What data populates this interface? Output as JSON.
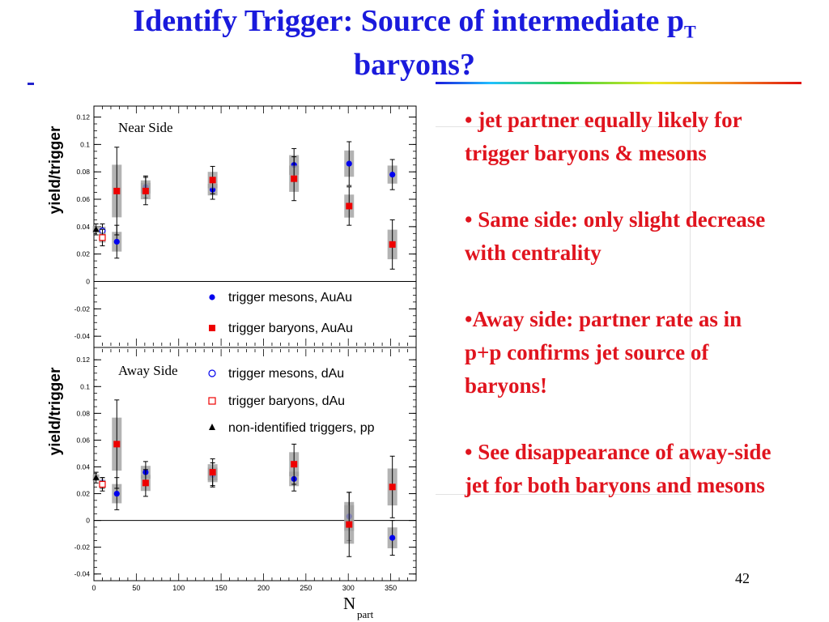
{
  "slide": {
    "title": "Identify Trigger: Source of intermediate p",
    "title_subscript": "T",
    "title_line2": "baryons?",
    "page_number": "42",
    "bullets": [
      "• jet partner equally likely for trigger baryons & mesons",
      "• Same side: only slight decrease with centrality",
      "•Away side: partner rate as in p+p confirms jet source of baryons!",
      "• See disappearance of away-side jet for both baryons and mesons"
    ],
    "colors": {
      "title": "#1a1adc",
      "bullets": "#e0141e"
    }
  },
  "chart_data": [
    {
      "type": "scatter",
      "panel_label": "Near Side",
      "ylabel": "yield/trigger",
      "xlabel": "",
      "xlim": [
        0,
        380
      ],
      "ylim": [
        -0.047,
        0.128
      ],
      "y_ticks": [
        "-0.04",
        "-0.02",
        "0",
        "0.02",
        "0.04",
        "0.06",
        "0.08",
        "0.1",
        "0.12"
      ],
      "y_tick_values": [
        -0.04,
        -0.02,
        0,
        0.02,
        0.04,
        0.06,
        0.08,
        0.1,
        0.12
      ],
      "series": [
        {
          "name": "trigger mesons, AuAu",
          "marker": "circle",
          "color": "#0000ee",
          "points": [
            [
              27,
              0.029,
              0.012
            ],
            [
              61,
              0.069,
              0.008
            ],
            [
              140,
              0.067,
              0.007
            ],
            [
              236,
              0.085,
              0.012
            ],
            [
              301,
              0.086,
              0.016
            ],
            [
              352,
              0.078,
              0.011
            ]
          ]
        },
        {
          "name": "trigger baryons, AuAu",
          "marker": "square",
          "color": "#ee0000",
          "points": [
            [
              27,
              0.066,
              0.032
            ],
            [
              61,
              0.066,
              0.01
            ],
            [
              140,
              0.074,
              0.01
            ],
            [
              236,
              0.075,
              0.016
            ],
            [
              301,
              0.055,
              0.014
            ],
            [
              352,
              0.027,
              0.018
            ]
          ]
        },
        {
          "name": "trigger mesons, dAu",
          "marker": "open-circle",
          "color": "#0000ee",
          "points": [
            [
              10,
              0.037,
              0.005
            ]
          ]
        },
        {
          "name": "trigger baryons, dAu",
          "marker": "open-square",
          "color": "#ee0000",
          "points": [
            [
              10,
              0.032,
              0.006
            ]
          ]
        },
        {
          "name": "non-identified triggers, pp",
          "marker": "triangle",
          "color": "#000000",
          "points": [
            [
              2.5,
              0.038,
              0.004
            ]
          ]
        }
      ]
    },
    {
      "type": "scatter",
      "panel_label": "Away Side",
      "ylabel": "yield/trigger",
      "xlabel": "N",
      "xlabel_sub": "part",
      "xlim": [
        0,
        380
      ],
      "ylim": [
        -0.045,
        0.128
      ],
      "x_ticks": [
        "0",
        "50",
        "100",
        "150",
        "200",
        "250",
        "300",
        "350"
      ],
      "x_tick_values": [
        0,
        50,
        100,
        150,
        200,
        250,
        300,
        350
      ],
      "y_ticks": [
        "-0.04",
        "-0.02",
        "0",
        "0.02",
        "0.04",
        "0.06",
        "0.08",
        "0.1",
        "0.12"
      ],
      "y_tick_values": [
        -0.04,
        -0.02,
        0,
        0.02,
        0.04,
        0.06,
        0.08,
        0.1,
        0.12
      ],
      "series": [
        {
          "name": "trigger mesons, AuAu",
          "marker": "circle",
          "color": "#0000ee",
          "points": [
            [
              27,
              0.02,
              0.012
            ],
            [
              61,
              0.036,
              0.008
            ],
            [
              140,
              0.034,
              0.009
            ],
            [
              236,
              0.031,
              0.009
            ],
            [
              301,
              0.003,
              0.018
            ],
            [
              352,
              -0.013,
              0.013
            ]
          ]
        },
        {
          "name": "trigger baryons, AuAu",
          "marker": "square",
          "color": "#ee0000",
          "points": [
            [
              27,
              0.057,
              0.033
            ],
            [
              61,
              0.028,
              0.01
            ],
            [
              140,
              0.036,
              0.01
            ],
            [
              236,
              0.042,
              0.015
            ],
            [
              301,
              -0.003,
              0.024
            ],
            [
              352,
              0.025,
              0.023
            ]
          ]
        },
        {
          "name": "trigger mesons, dAu",
          "marker": "open-circle",
          "color": "#0000ee",
          "points": [
            [
              10,
              0.028,
              0.004
            ]
          ]
        },
        {
          "name": "trigger baryons, dAu",
          "marker": "open-square",
          "color": "#ee0000",
          "points": [
            [
              10,
              0.027,
              0.005
            ]
          ]
        },
        {
          "name": "non-identified triggers, pp",
          "marker": "triangle",
          "color": "#000000",
          "points": [
            [
              2.5,
              0.032,
              0.004
            ]
          ]
        }
      ]
    }
  ]
}
